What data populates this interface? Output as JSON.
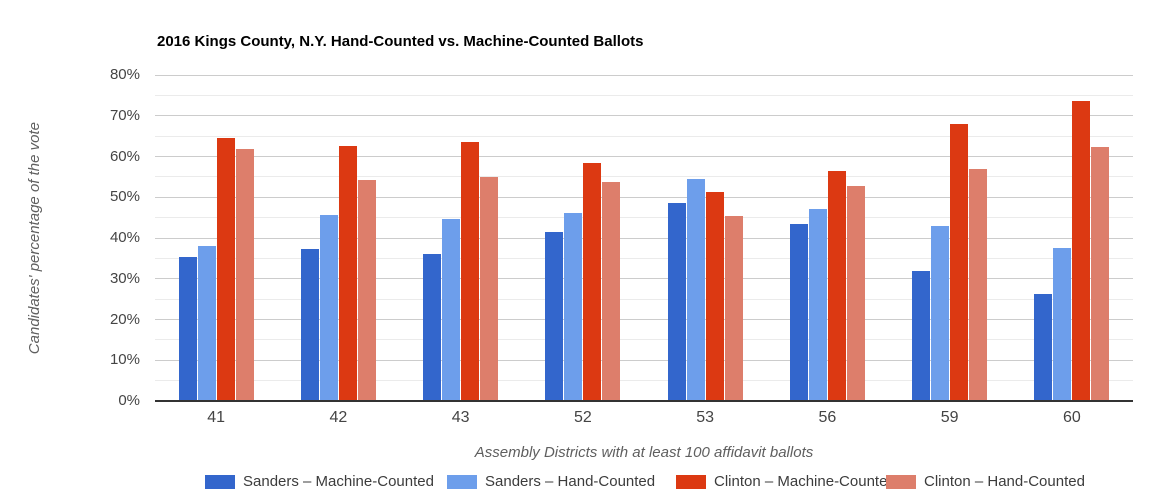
{
  "chart_data": {
    "type": "bar",
    "title": "2016 Kings County, N.Y. Hand-Counted vs. Machine-Counted Ballots",
    "xlabel": "Assembly Districts with at least 100 affidavit ballots",
    "ylabel": "Candidates' percentage of the vote",
    "categories": [
      "41",
      "42",
      "43",
      "52",
      "53",
      "56",
      "59",
      "60"
    ],
    "series": [
      {
        "name": "Sanders – Machine-Counted",
        "color": "#3366cc",
        "values": [
          35.4,
          37.2,
          36.0,
          41.5,
          48.7,
          43.5,
          31.9,
          26.2
        ]
      },
      {
        "name": "Sanders – Hand-Counted",
        "color": "#6d9eeb",
        "values": [
          38.0,
          45.7,
          44.7,
          46.1,
          54.4,
          47.0,
          42.9,
          37.5
        ]
      },
      {
        "name": "Clinton – Machine-Counted",
        "color": "#dc3912",
        "values": [
          64.5,
          62.6,
          63.5,
          58.4,
          51.3,
          56.4,
          68.0,
          73.5
        ]
      },
      {
        "name": "Clinton – Hand-Counted",
        "color": "#dd7e6b",
        "values": [
          61.8,
          54.2,
          55.0,
          53.8,
          45.5,
          52.8,
          56.9,
          62.3
        ]
      }
    ],
    "ylim": [
      0,
      80
    ],
    "ytick_step_major": 10,
    "ytick_step_minor": 5,
    "ytick_labels": [
      "0%",
      "10%",
      "20%",
      "30%",
      "40%",
      "50%",
      "60%",
      "70%",
      "80%"
    ],
    "grid": true,
    "legend_position": "bottom"
  },
  "colors": {
    "background": "#ffffff",
    "gridline_major": "#cccccc",
    "gridline_minor": "#ebebeb",
    "axis_line": "#333333",
    "tick_label": "#444444",
    "axis_title": "#5f5f5f",
    "title": "#000000"
  }
}
